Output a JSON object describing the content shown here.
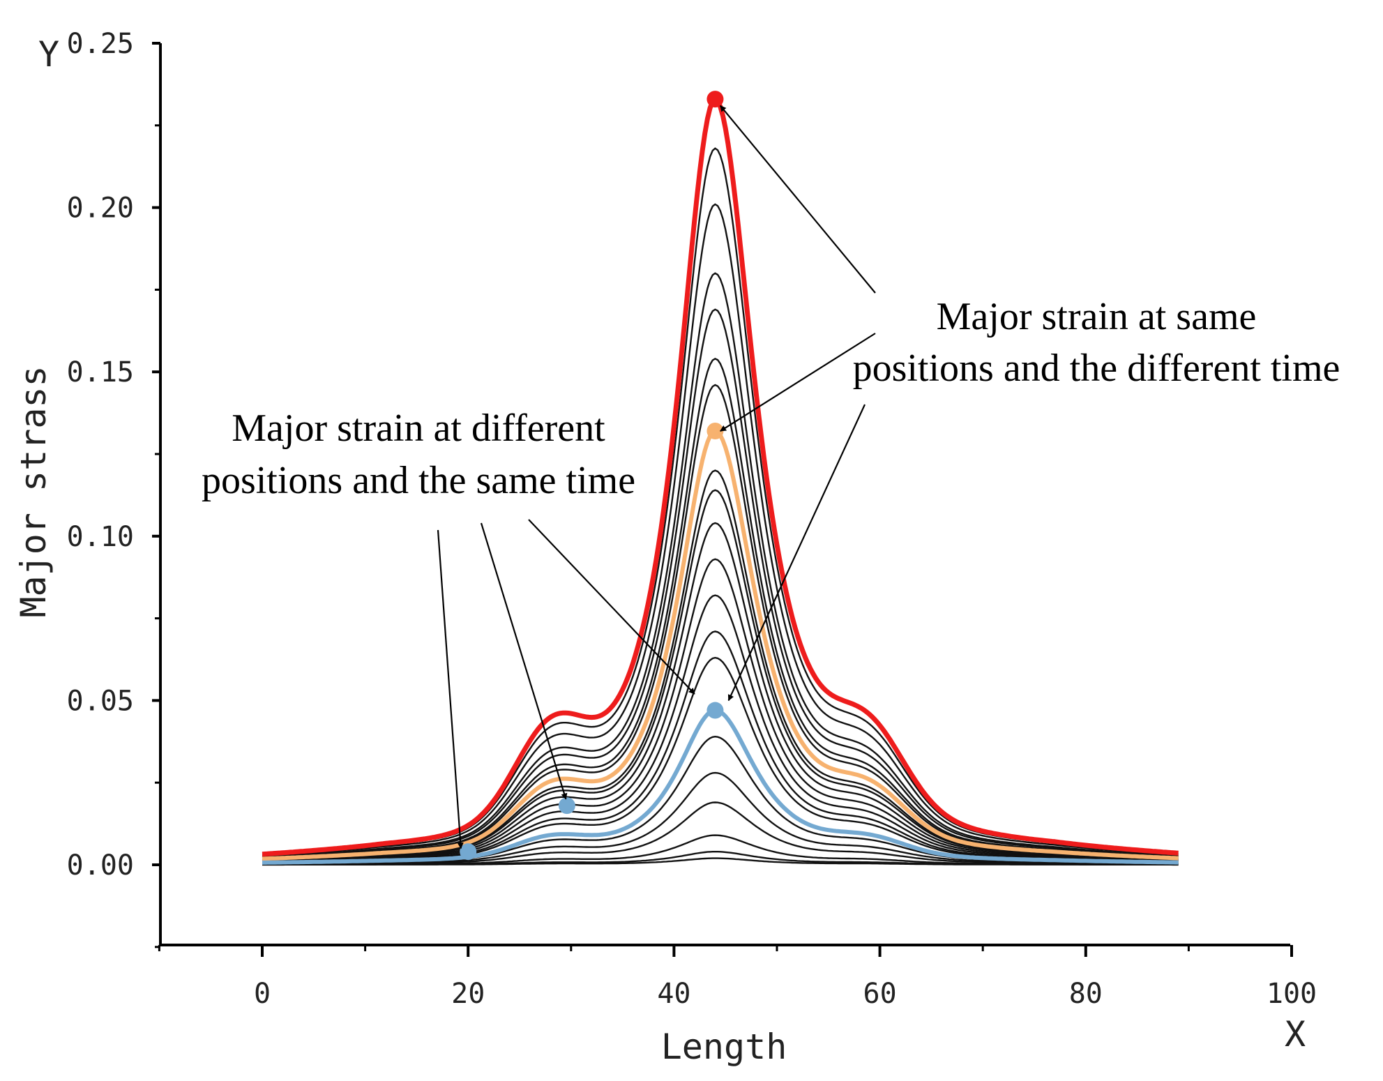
{
  "chart_data": {
    "type": "line",
    "title": "",
    "xlabel": "Length",
    "ylabel": "Major strass",
    "x_axis_end_label": "X",
    "y_axis_end_label": "Y",
    "xlim": [
      -10,
      100
    ],
    "ylim": [
      -0.025,
      0.25
    ],
    "x_ticks": [
      0,
      20,
      40,
      60,
      80,
      100
    ],
    "y_ticks": [
      0.0,
      0.05,
      0.1,
      0.15,
      0.2,
      0.25
    ],
    "x_tick_labels": [
      "0",
      "20",
      "40",
      "60",
      "80",
      "100"
    ],
    "y_tick_labels": [
      "0.00",
      "0.05",
      "0.10",
      "0.15",
      "0.20",
      "0.25"
    ],
    "grid": false,
    "profile": {
      "description_of_shape": "baseline, shoulder, peak, shoulder2",
      "x_range": [
        0,
        89
      ],
      "peak_x": 44,
      "baseline_fraction": 0.008,
      "shoulder1": {
        "x": 28,
        "width": 5,
        "fraction": 0.11
      },
      "shoulder2": {
        "x": 59,
        "width": 5,
        "fraction": 0.09
      },
      "peak_left_width": 4.6,
      "peak_right_width": 5.0
    },
    "black_curve_peaks": [
      0.002,
      0.004,
      0.009,
      0.019,
      0.028,
      0.039,
      0.063,
      0.071,
      0.082,
      0.093,
      0.104,
      0.114,
      0.12,
      0.146,
      0.154,
      0.169,
      0.18,
      0.201,
      0.218
    ],
    "series": [
      {
        "name": "red",
        "color": "#ee1c1c",
        "peak": 0.233,
        "marker": {
          "x": 44,
          "y": 0.233
        }
      },
      {
        "name": "orange",
        "color": "#f7b26f",
        "peak": 0.132,
        "marker": {
          "x": 44,
          "y": 0.132
        }
      },
      {
        "name": "blue",
        "color": "#74a9d1",
        "peak": 0.047,
        "markers": [
          {
            "x": 20,
            "y": 0.004
          },
          {
            "x": 29.6,
            "y": 0.018
          },
          {
            "x": 44,
            "y": 0.047
          }
        ]
      }
    ],
    "annotations": [
      {
        "name": "same-positions-different-time",
        "lines": [
          "Major strain at same",
          "positions and the different time"
        ],
        "arrow_targets": [
          {
            "x": 44.5,
            "y": 0.231
          },
          {
            "x": 44.5,
            "y": 0.132
          },
          {
            "x": 45.3,
            "y": 0.05
          }
        ]
      },
      {
        "name": "different-positions-same-time",
        "lines": [
          "Major strain at different",
          "positions and the same time"
        ],
        "arrow_targets": [
          {
            "x": 19.3,
            "y": 0.005
          },
          {
            "x": 29.5,
            "y": 0.02
          },
          {
            "x": 42.0,
            "y": 0.052
          }
        ]
      }
    ]
  }
}
